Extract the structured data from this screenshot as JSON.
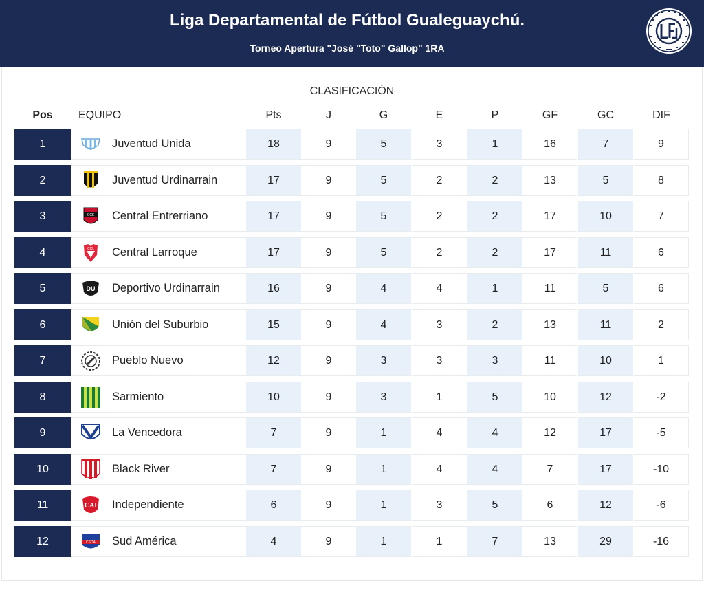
{
  "header": {
    "title": "Liga Departamental de Fútbol Gualeguaychú.",
    "subtitle": "Torneo Apertura \"José \"Toto\" Gallop\" 1RA",
    "logo_icon": "league-seal-logo",
    "logo_text": "LIGA DEPARTAMENTAL DE FUTBOL GUALEGUAYCHU",
    "logo_letters": "LFG"
  },
  "section_title": "CLASIFICACIÓN",
  "columns": {
    "pos": "Pos",
    "team": "EQUIPO",
    "pts": "Pts",
    "j": "J",
    "g": "G",
    "e": "E",
    "p": "P",
    "gf": "GF",
    "gc": "GC",
    "dif": "DIF"
  },
  "colors": {
    "navy": "#1c2b53",
    "shade": "#e8f1fa",
    "border": "#e9ecef"
  },
  "rows": [
    {
      "pos": "1",
      "team": "Juventud Unida",
      "pts": "18",
      "j": "9",
      "g": "5",
      "e": "3",
      "p": "1",
      "gf": "16",
      "gc": "7",
      "dif": "9",
      "crest": "sky-blue-stripes-crest-icon"
    },
    {
      "pos": "2",
      "team": "Juventud Urdinarrain",
      "pts": "17",
      "j": "9",
      "g": "5",
      "e": "2",
      "p": "2",
      "gf": "13",
      "gc": "5",
      "dif": "8",
      "crest": "yellow-black-crest-icon"
    },
    {
      "pos": "3",
      "team": "Central Entrerriano",
      "pts": "17",
      "j": "9",
      "g": "5",
      "e": "2",
      "p": "2",
      "gf": "17",
      "gc": "10",
      "dif": "7",
      "crest": "red-black-crest-icon"
    },
    {
      "pos": "4",
      "team": "Central Larroque",
      "pts": "17",
      "j": "9",
      "g": "5",
      "e": "2",
      "p": "2",
      "gf": "17",
      "gc": "11",
      "dif": "6",
      "crest": "red-white-crest-icon"
    },
    {
      "pos": "5",
      "team": "Deportivo Urdinarrain",
      "pts": "16",
      "j": "9",
      "g": "4",
      "e": "4",
      "p": "1",
      "gf": "11",
      "gc": "5",
      "dif": "6",
      "crest": "black-white-crest-icon"
    },
    {
      "pos": "6",
      "team": "Unión del Suburbio",
      "pts": "15",
      "j": "9",
      "g": "4",
      "e": "3",
      "p": "2",
      "gf": "13",
      "gc": "11",
      "dif": "2",
      "crest": "green-yellow-crest-icon"
    },
    {
      "pos": "7",
      "team": "Pueblo Nuevo",
      "pts": "12",
      "j": "9",
      "g": "3",
      "e": "3",
      "p": "3",
      "gf": "11",
      "gc": "10",
      "dif": "1",
      "crest": "wreath-crest-icon"
    },
    {
      "pos": "8",
      "team": "Sarmiento",
      "pts": "10",
      "j": "9",
      "g": "3",
      "e": "1",
      "p": "5",
      "gf": "10",
      "gc": "12",
      "dif": "-2",
      "crest": "green-yellow-stripes-crest-icon"
    },
    {
      "pos": "9",
      "team": "La Vencedora",
      "pts": "7",
      "j": "9",
      "g": "1",
      "e": "4",
      "p": "4",
      "gf": "12",
      "gc": "17",
      "dif": "-5",
      "crest": "blue-chevron-crest-icon"
    },
    {
      "pos": "10",
      "team": "Black River",
      "pts": "7",
      "j": "9",
      "g": "1",
      "e": "4",
      "p": "4",
      "gf": "7",
      "gc": "17",
      "dif": "-10",
      "crest": "red-white-stripes-crest-icon"
    },
    {
      "pos": "11",
      "team": "Independiente",
      "pts": "6",
      "j": "9",
      "g": "1",
      "e": "3",
      "p": "5",
      "gf": "6",
      "gc": "12",
      "dif": "-6",
      "crest": "red-round-crest-icon"
    },
    {
      "pos": "12",
      "team": "Sud América",
      "pts": "4",
      "j": "9",
      "g": "1",
      "e": "1",
      "p": "7",
      "gf": "13",
      "gc": "29",
      "dif": "-16",
      "crest": "blue-red-shield-crest-icon"
    }
  ]
}
